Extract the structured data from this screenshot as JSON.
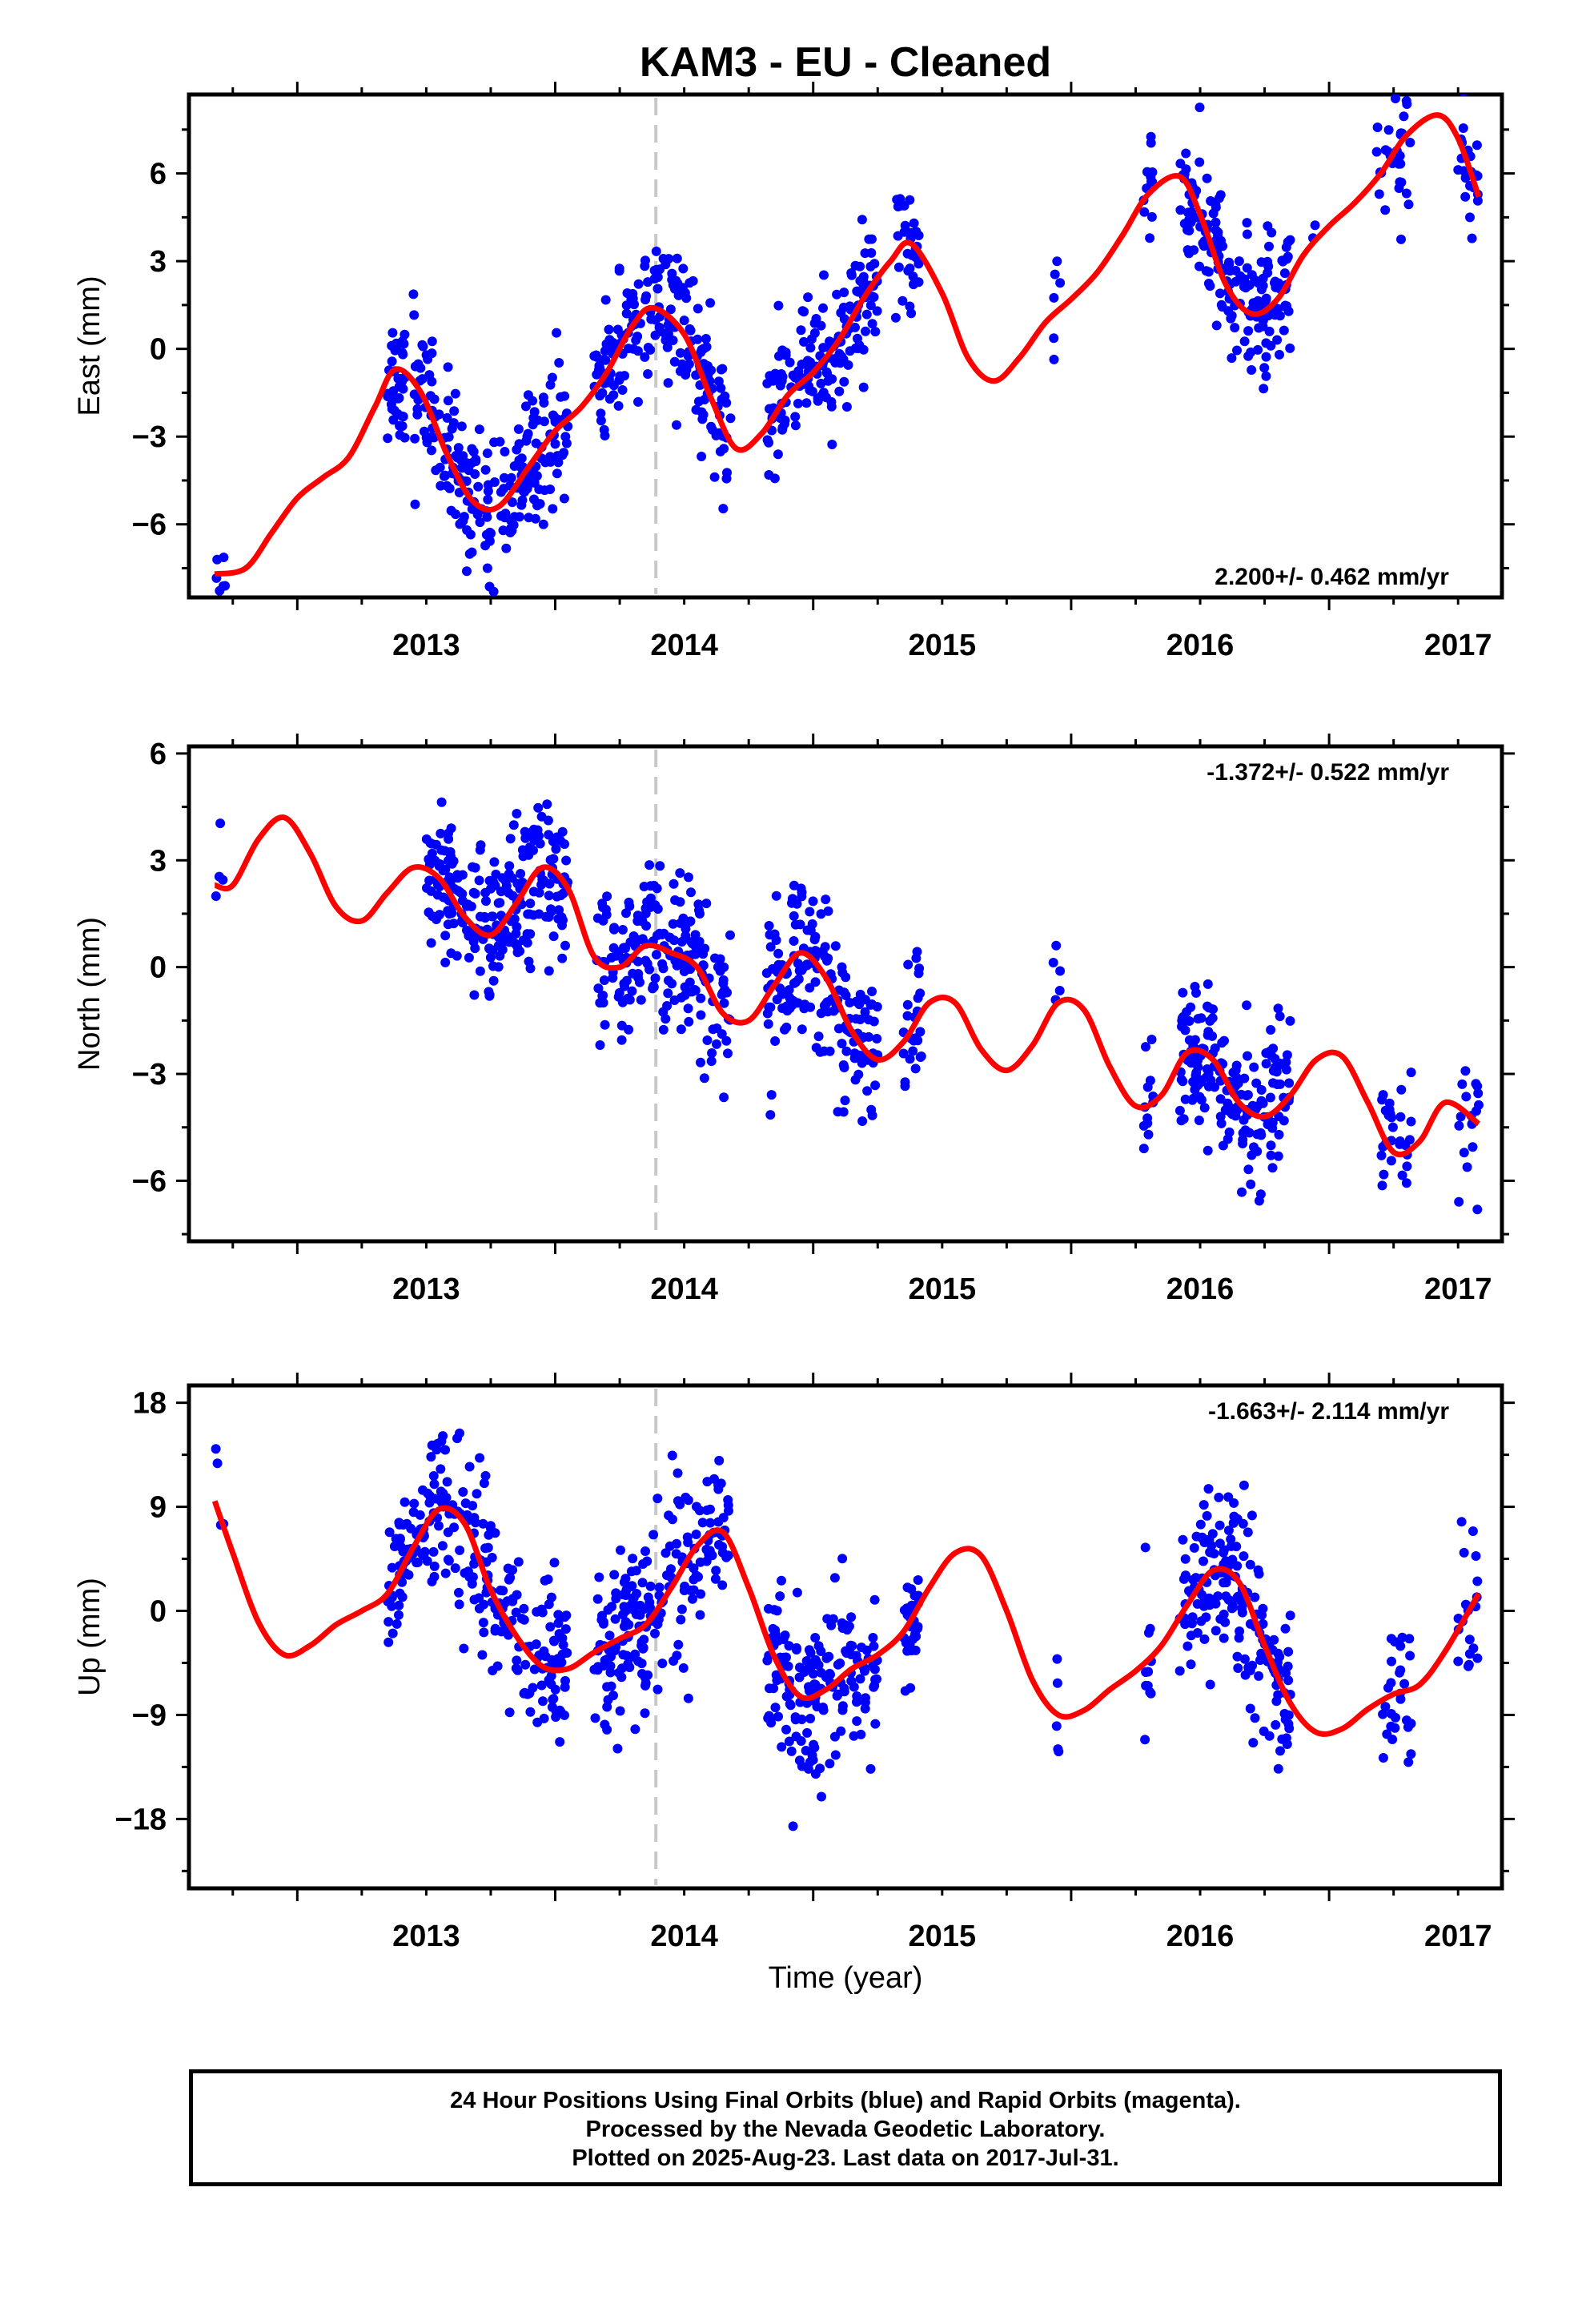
{
  "chart_data": [
    {
      "type": "scatter",
      "title": "KAM3  - EU - Cleaned",
      "ylabel": "East (mm)",
      "xlabel": "",
      "xlim": [
        2012.58,
        2017.67
      ],
      "ylim": [
        -8.5,
        8.7
      ],
      "xticks": [
        2013,
        2014,
        2015,
        2016,
        2017
      ],
      "yticks": [
        -6,
        -3,
        0,
        3,
        6
      ],
      "ytick_labels": [
        "−6",
        "−3",
        "0",
        "3",
        "6"
      ],
      "event_line_x": 2014.39,
      "rate_text": "2.200+/- 0.462 mm/yr",
      "rate_position": "bottom-right",
      "grid": false,
      "series": [
        {
          "name": "Final Orbits",
          "color": "#0000ff",
          "segments": [
            [
              2012.68,
              2012.72,
              8
            ],
            [
              2013.35,
              2013.42,
              40
            ],
            [
              2013.45,
              2014.05,
              230
            ],
            [
              2014.15,
              2014.68,
              190
            ],
            [
              2014.82,
              2015.25,
              170
            ],
            [
              2015.32,
              2015.42,
              30
            ],
            [
              2015.93,
              2015.96,
              6
            ],
            [
              2016.28,
              2016.32,
              12
            ],
            [
              2016.42,
              2016.85,
              170
            ],
            [
              2016.93,
              2016.95,
              2
            ],
            [
              2017.18,
              2017.32,
              30
            ],
            [
              2017.5,
              2017.58,
              22
            ]
          ]
        }
      ],
      "model_curve": {
        "color": "#ff0000",
        "x": [
          2012.68,
          2012.8,
          2012.9,
          2013.0,
          2013.1,
          2013.2,
          2013.3,
          2013.38,
          2013.48,
          2013.58,
          2013.68,
          2013.78,
          2013.9,
          2014.0,
          2014.1,
          2014.2,
          2014.3,
          2014.38,
          2014.5,
          2014.6,
          2014.7,
          2014.8,
          2014.9,
          2015.0,
          2015.1,
          2015.2,
          2015.3,
          2015.38,
          2015.5,
          2015.6,
          2015.7,
          2015.8,
          2015.9,
          2016.0,
          2016.1,
          2016.2,
          2016.3,
          2016.42,
          2016.5,
          2016.6,
          2016.7,
          2016.8,
          2016.9,
          2017.0,
          2017.1,
          2017.2,
          2017.3,
          2017.42,
          2017.5,
          2017.58
        ],
        "y": [
          -7.7,
          -7.5,
          -6.3,
          -5.1,
          -4.4,
          -3.7,
          -2.0,
          -0.7,
          -1.5,
          -3.6,
          -5.2,
          -5.4,
          -4.0,
          -2.8,
          -2.0,
          -0.8,
          0.8,
          1.4,
          0.5,
          -1.6,
          -3.4,
          -2.9,
          -1.6,
          -0.8,
          0.3,
          1.8,
          3.0,
          3.6,
          1.9,
          -0.3,
          -1.1,
          -0.3,
          0.9,
          1.7,
          2.6,
          3.9,
          5.3,
          5.9,
          4.6,
          2.2,
          1.2,
          1.7,
          3.2,
          4.2,
          5.0,
          6.0,
          7.3,
          8.0,
          7.2,
          5.2
        ]
      }
    },
    {
      "type": "scatter",
      "ylabel": "North (mm)",
      "xlabel": "",
      "xlim": [
        2012.58,
        2017.67
      ],
      "ylim": [
        -7.7,
        6.2
      ],
      "xticks": [
        2013,
        2014,
        2015,
        2016,
        2017
      ],
      "yticks": [
        -6,
        -3,
        0,
        3,
        6
      ],
      "ytick_labels": [
        "−6",
        "−3",
        "0",
        "3",
        "6"
      ],
      "event_line_x": 2014.39,
      "rate_text": "-1.372+/- 0.522 mm/yr",
      "rate_position": "top-right",
      "grid": false,
      "series": [
        {
          "name": "Final Orbits",
          "color": "#0000ff",
          "segments": [
            [
              2012.68,
              2012.72,
              4
            ],
            [
              2013.5,
              2014.05,
              240
            ],
            [
              2014.16,
              2014.68,
              200
            ],
            [
              2014.82,
              2015.25,
              170
            ],
            [
              2015.35,
              2015.42,
              28
            ],
            [
              2015.93,
              2015.96,
              5
            ],
            [
              2016.28,
              2016.32,
              12
            ],
            [
              2016.42,
              2016.85,
              180
            ],
            [
              2017.2,
              2017.32,
              28
            ],
            [
              2017.5,
              2017.58,
              18
            ]
          ]
        }
      ],
      "model_curve": {
        "color": "#ff0000",
        "x": [
          2012.68,
          2012.75,
          2012.85,
          2012.95,
          2013.05,
          2013.15,
          2013.25,
          2013.35,
          2013.45,
          2013.55,
          2013.65,
          2013.75,
          2013.85,
          2013.95,
          2014.05,
          2014.15,
          2014.25,
          2014.35,
          2014.45,
          2014.55,
          2014.65,
          2014.75,
          2014.85,
          2014.95,
          2015.05,
          2015.15,
          2015.25,
          2015.35,
          2015.45,
          2015.55,
          2015.65,
          2015.75,
          2015.85,
          2015.95,
          2016.05,
          2016.15,
          2016.25,
          2016.35,
          2016.45,
          2016.55,
          2016.65,
          2016.75,
          2016.85,
          2016.95,
          2017.05,
          2017.15,
          2017.25,
          2017.35,
          2017.45,
          2017.58
        ],
        "y": [
          2.3,
          2.3,
          3.6,
          4.2,
          3.2,
          1.7,
          1.3,
          2.1,
          2.8,
          2.5,
          1.4,
          0.9,
          1.8,
          2.8,
          2.2,
          0.3,
          0.0,
          0.6,
          0.4,
          0.0,
          -1.3,
          -1.5,
          -0.5,
          0.4,
          -0.3,
          -1.8,
          -2.6,
          -2.1,
          -1.0,
          -1.0,
          -2.3,
          -2.9,
          -2.2,
          -1.0,
          -1.2,
          -2.8,
          -3.9,
          -3.6,
          -2.4,
          -2.6,
          -3.8,
          -4.2,
          -3.6,
          -2.6,
          -2.5,
          -3.8,
          -5.2,
          -4.9,
          -3.8,
          -4.4
        ]
      }
    },
    {
      "type": "scatter",
      "ylabel": "Up (mm)",
      "xlabel": "Time (year)",
      "xlim": [
        2012.58,
        2017.67
      ],
      "ylim": [
        -24,
        19.5
      ],
      "xticks": [
        2013,
        2014,
        2015,
        2016,
        2017
      ],
      "yticks": [
        -18,
        -9,
        0,
        9,
        18
      ],
      "ytick_labels": [
        "−18",
        "−9",
        "0",
        "9",
        "18"
      ],
      "event_line_x": 2014.39,
      "rate_text": "-1.663+/- 2.114 mm/yr",
      "rate_position": "top-right",
      "grid": false,
      "series": [
        {
          "name": "Final Orbits",
          "color": "#0000ff",
          "segments": [
            [
              2012.68,
              2012.72,
              4
            ],
            [
              2013.35,
              2014.05,
              260
            ],
            [
              2014.15,
              2014.68,
              200
            ],
            [
              2014.82,
              2015.25,
              170
            ],
            [
              2015.35,
              2015.42,
              28
            ],
            [
              2015.93,
              2015.96,
              5
            ],
            [
              2016.28,
              2016.32,
              12
            ],
            [
              2016.42,
              2016.85,
              180
            ],
            [
              2017.2,
              2017.32,
              28
            ],
            [
              2017.5,
              2017.58,
              20
            ]
          ]
        }
      ],
      "model_curve": {
        "color": "#ff0000",
        "x": [
          2012.68,
          2012.75,
          2012.85,
          2012.95,
          2013.05,
          2013.15,
          2013.25,
          2013.35,
          2013.45,
          2013.55,
          2013.65,
          2013.75,
          2013.85,
          2013.95,
          2014.05,
          2014.15,
          2014.25,
          2014.35,
          2014.45,
          2014.55,
          2014.65,
          2014.75,
          2014.85,
          2014.95,
          2015.05,
          2015.15,
          2015.25,
          2015.35,
          2015.45,
          2015.55,
          2015.65,
          2015.75,
          2015.85,
          2015.95,
          2016.05,
          2016.15,
          2016.25,
          2016.35,
          2016.45,
          2016.55,
          2016.65,
          2016.75,
          2016.85,
          2016.95,
          2017.05,
          2017.15,
          2017.25,
          2017.35,
          2017.45,
          2017.58
        ],
        "y": [
          9.5,
          5.0,
          -1.0,
          -3.8,
          -3.0,
          -1.2,
          0.0,
          1.5,
          5.5,
          8.8,
          7.5,
          1.8,
          -2.2,
          -4.8,
          -5.0,
          -3.6,
          -2.4,
          -1.2,
          2.0,
          5.6,
          6.8,
          2.0,
          -4.0,
          -7.4,
          -6.8,
          -5.0,
          -3.8,
          -1.8,
          2.0,
          5.0,
          4.8,
          0.0,
          -6.0,
          -9.0,
          -8.6,
          -6.8,
          -5.2,
          -3.0,
          0.5,
          3.5,
          2.5,
          -3.0,
          -8.0,
          -10.5,
          -10.2,
          -8.5,
          -7.2,
          -6.4,
          -3.5,
          1.5
        ]
      }
    }
  ],
  "footer": {
    "line1": "24 Hour Positions Using Final Orbits (blue) and Rapid Orbits (magenta).",
    "line2": "Processed by the Nevada Geodetic Laboratory.",
    "line3": "Plotted on 2025-Aug-23. Last data on 2017-Jul-31."
  }
}
